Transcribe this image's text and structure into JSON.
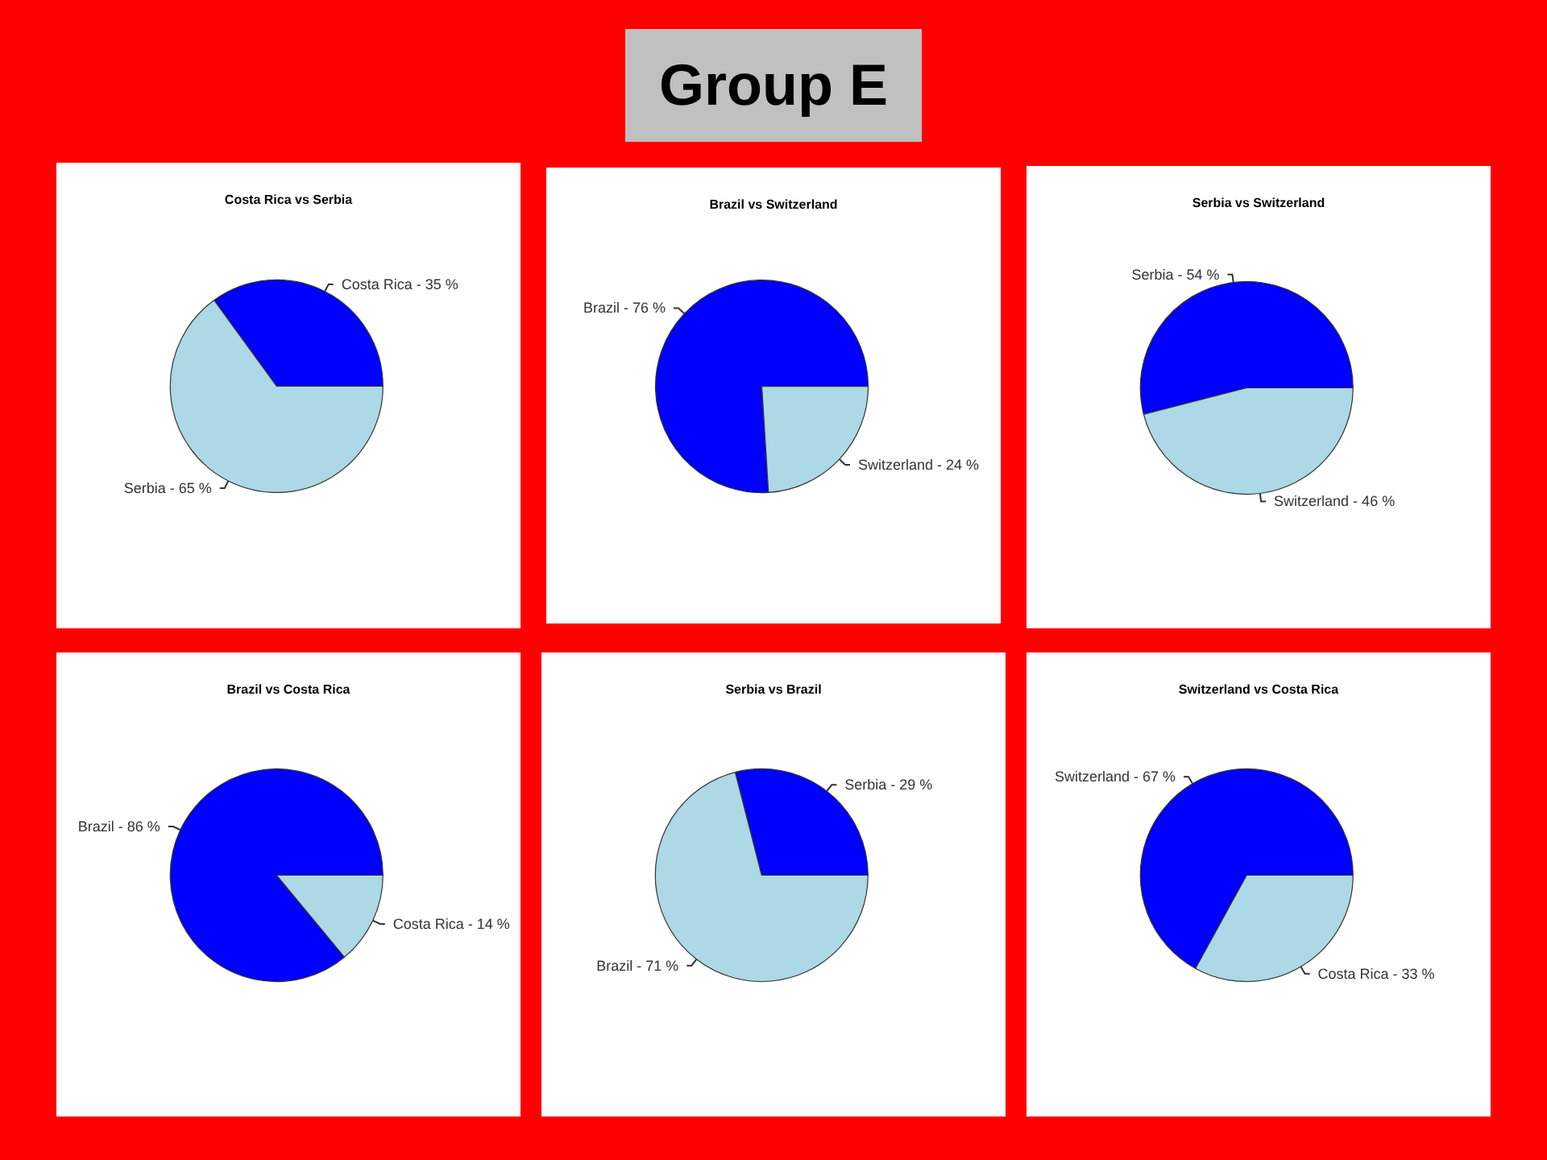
{
  "chart_data": [
    {
      "type": "other",
      "title": "Group E"
    },
    {
      "type": "pie",
      "title": "Costa Rica vs Serbia",
      "categories": [
        "Costa Rica - 35 %",
        "Serbia - 65 %"
      ],
      "values": [
        35,
        65
      ],
      "colors": [
        "#0000ff",
        "#add8e6"
      ]
    },
    {
      "type": "pie",
      "title": "Brazil vs Switzerland",
      "categories": [
        "Brazil - 76 %",
        "Switzerland - 24 %"
      ],
      "values": [
        76,
        24
      ],
      "colors": [
        "#0000ff",
        "#add8e6"
      ]
    },
    {
      "type": "pie",
      "title": "Serbia vs Switzerland",
      "categories": [
        "Serbia - 54 %",
        "Switzerland - 46 %"
      ],
      "values": [
        54,
        46
      ],
      "colors": [
        "#0000ff",
        "#add8e6"
      ]
    },
    {
      "type": "pie",
      "title": "Brazil vs Costa Rica",
      "categories": [
        "Brazil - 86 %",
        "Costa Rica - 14 %"
      ],
      "values": [
        86,
        14
      ],
      "colors": [
        "#0000ff",
        "#add8e6"
      ]
    },
    {
      "type": "pie",
      "title": "Serbia vs Brazil",
      "categories": [
        "Serbia - 29 %",
        "Brazil - 71 %"
      ],
      "values": [
        29,
        71
      ],
      "colors": [
        "#0000ff",
        "#add8e6"
      ]
    },
    {
      "type": "pie",
      "title": "Switzerland vs Costa Rica",
      "categories": [
        "Switzerland - 67 %",
        "Costa Rica - 33 %"
      ],
      "values": [
        67,
        33
      ],
      "colors": [
        "#0000ff",
        "#add8e6"
      ]
    }
  ]
}
